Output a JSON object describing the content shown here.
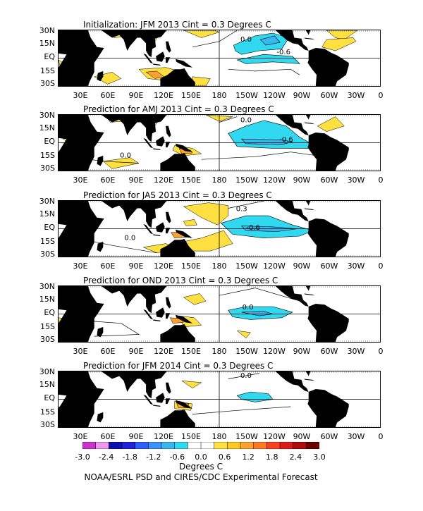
{
  "panels": [
    {
      "title": "Initialization: JFM 2013  Cint = 0.3 Degrees C",
      "labels": [
        "0.0",
        "-0.6"
      ]
    },
    {
      "title": "Prediction for AMJ 2013  Cint = 0.3 Degrees C",
      "labels": [
        "0.0",
        "-0.6",
        "0.0"
      ]
    },
    {
      "title": "Prediction for JAS 2013  Cint = 0.3 Degrees C",
      "labels": [
        "0.3",
        "-0.6",
        "0.0"
      ]
    },
    {
      "title": "Prediction for OND 2013  Cint = 0.3 Degrees C",
      "labels": [
        "0.0"
      ]
    },
    {
      "title": "Prediction for JFM 2014  Cint = 0.3 Degrees C",
      "labels": [
        "0.0"
      ]
    }
  ],
  "lat_labels": [
    "30N",
    "15N",
    "EQ",
    "15S",
    "30S"
  ],
  "lon_labels": [
    "30E",
    "60E",
    "90E",
    "120E",
    "150E",
    "180",
    "150W",
    "120W",
    "90W",
    "60W",
    "30W",
    "0"
  ],
  "colorbar": {
    "labels": [
      "-3.0",
      "-2.4",
      "-1.8",
      "-1.2",
      "-0.6",
      "0.0",
      "0.6",
      "1.2",
      "1.8",
      "2.4",
      "3.0"
    ],
    "colors": [
      "#cc33cc",
      "#ee99ee",
      "#1010b0",
      "#2020e0",
      "#2f5fff",
      "#3f8fff",
      "#38b8f0",
      "#30d8f0",
      "#ffffff",
      "#ffffff",
      "#ffe040",
      "#ffc820",
      "#ffa030",
      "#ff7820",
      "#ff4020",
      "#e01818",
      "#b00c0c",
      "#6a0000"
    ],
    "title": "Degrees C"
  },
  "credit": "NOAA/ESRL PSD and CIRES/CDC Experimental Forecast",
  "colors": {
    "land": "#000000",
    "warm": "#ffe040",
    "warm_strong": "#ffa030",
    "cool": "#30d8f0",
    "cool_strong": "#38b8f0"
  }
}
